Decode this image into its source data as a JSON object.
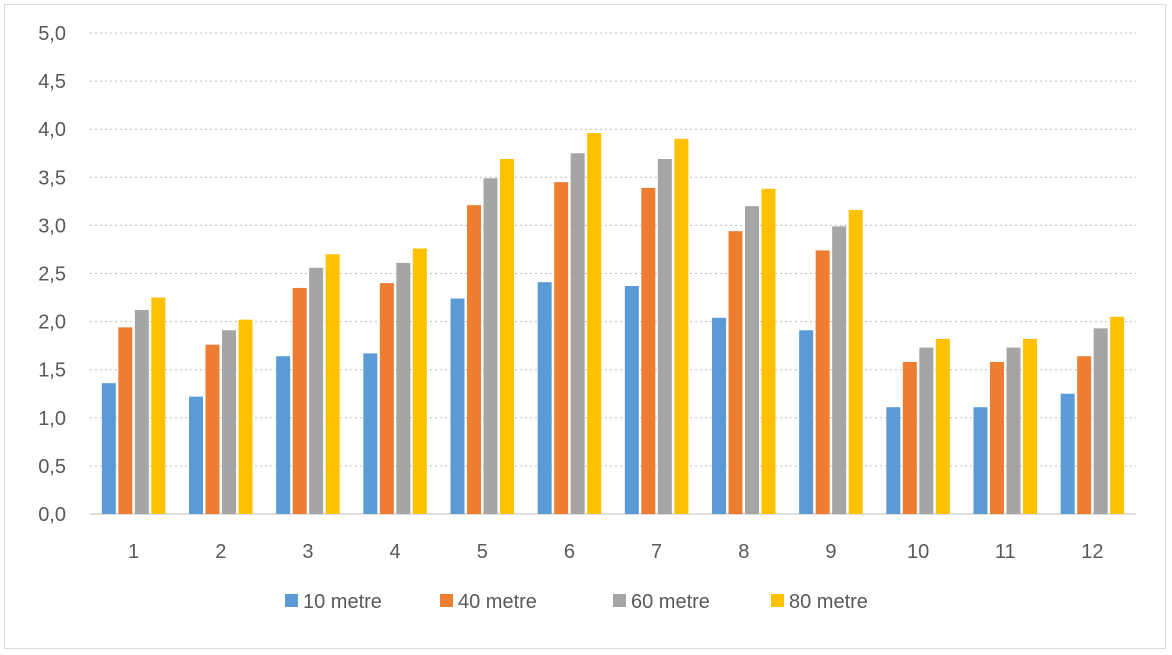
{
  "chart_data": {
    "type": "bar",
    "categories": [
      "1",
      "2",
      "3",
      "4",
      "5",
      "6",
      "7",
      "8",
      "9",
      "10",
      "11",
      "12"
    ],
    "series": [
      {
        "name": "10 metre",
        "color": "#5b9bd5",
        "values": [
          1.36,
          1.22,
          1.64,
          1.67,
          2.24,
          2.41,
          2.37,
          2.04,
          1.91,
          1.11,
          1.11,
          1.25
        ]
      },
      {
        "name": "40 metre",
        "color": "#ed7d31",
        "values": [
          1.94,
          1.76,
          2.35,
          2.4,
          3.21,
          3.45,
          3.39,
          2.94,
          2.74,
          1.58,
          1.58,
          1.64
        ]
      },
      {
        "name": "60 metre",
        "color": "#a5a5a5",
        "values": [
          2.12,
          1.91,
          2.56,
          2.61,
          3.49,
          3.75,
          3.69,
          3.2,
          2.99,
          1.73,
          1.73,
          1.93
        ]
      },
      {
        "name": "80 metre",
        "color": "#ffc000",
        "values": [
          2.25,
          2.02,
          2.7,
          2.76,
          3.69,
          3.96,
          3.9,
          3.38,
          3.16,
          1.82,
          1.82,
          2.05
        ]
      }
    ],
    "y_ticks": [
      "0,0",
      "0,5",
      "1,0",
      "1,5",
      "2,0",
      "2,5",
      "3,0",
      "3,5",
      "4,0",
      "4,5",
      "5,0"
    ],
    "ylim": [
      0,
      5
    ],
    "grid": true,
    "legend_position": "bottom",
    "title": "",
    "xlabel": "",
    "ylabel": ""
  }
}
